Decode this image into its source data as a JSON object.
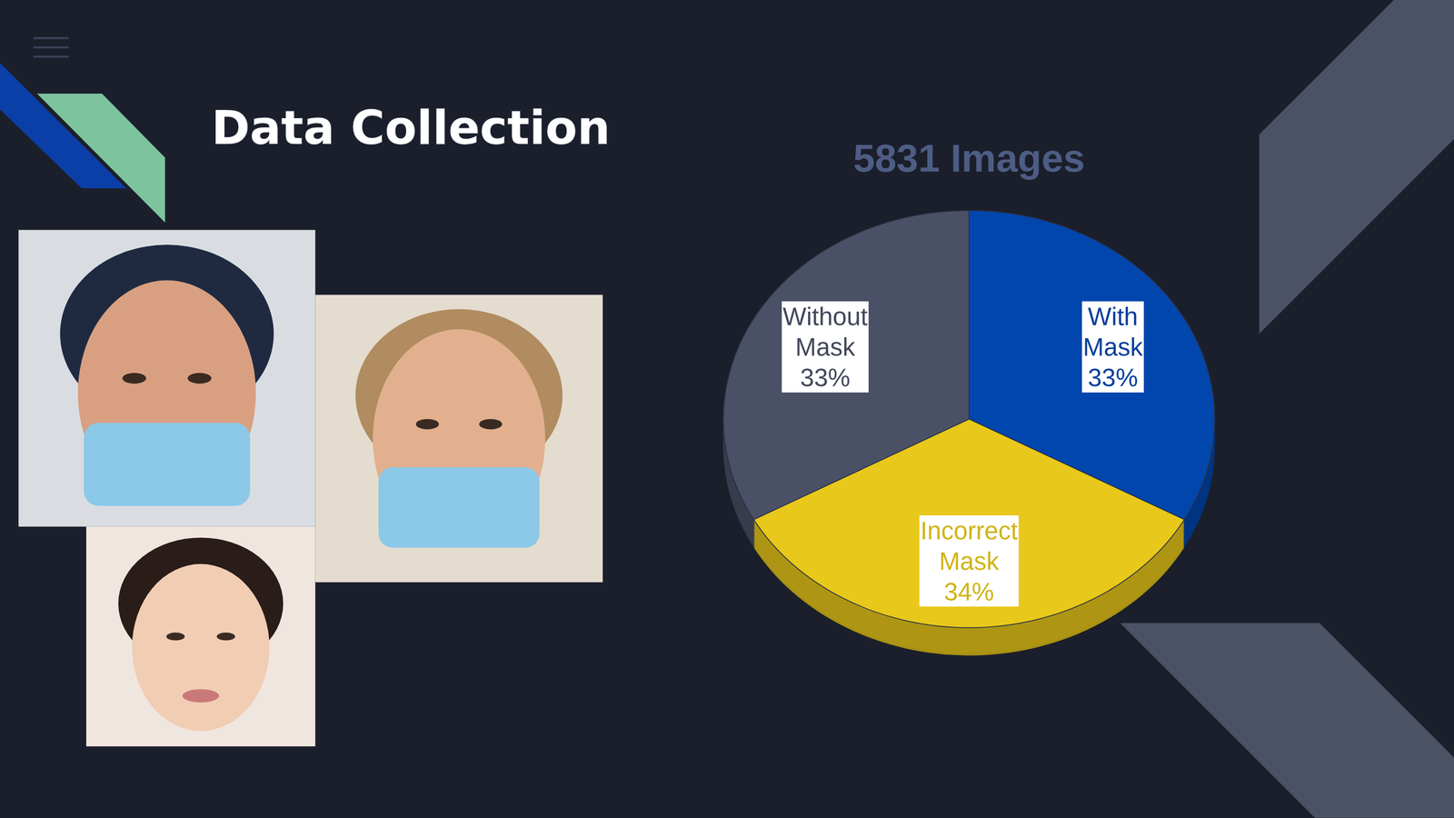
{
  "page": {
    "title": "Data Collection"
  },
  "chart_data": {
    "type": "pie",
    "title": "5831 Images",
    "categories": [
      "With Mask",
      "Incorrect Mask",
      "Without Mask"
    ],
    "values": [
      33,
      34,
      33
    ],
    "value_labels": [
      "33%",
      "34%",
      "33%"
    ],
    "colors": [
      "#0046ad",
      "#e8c81a",
      "#4a5066"
    ],
    "data_labels": true
  }
}
